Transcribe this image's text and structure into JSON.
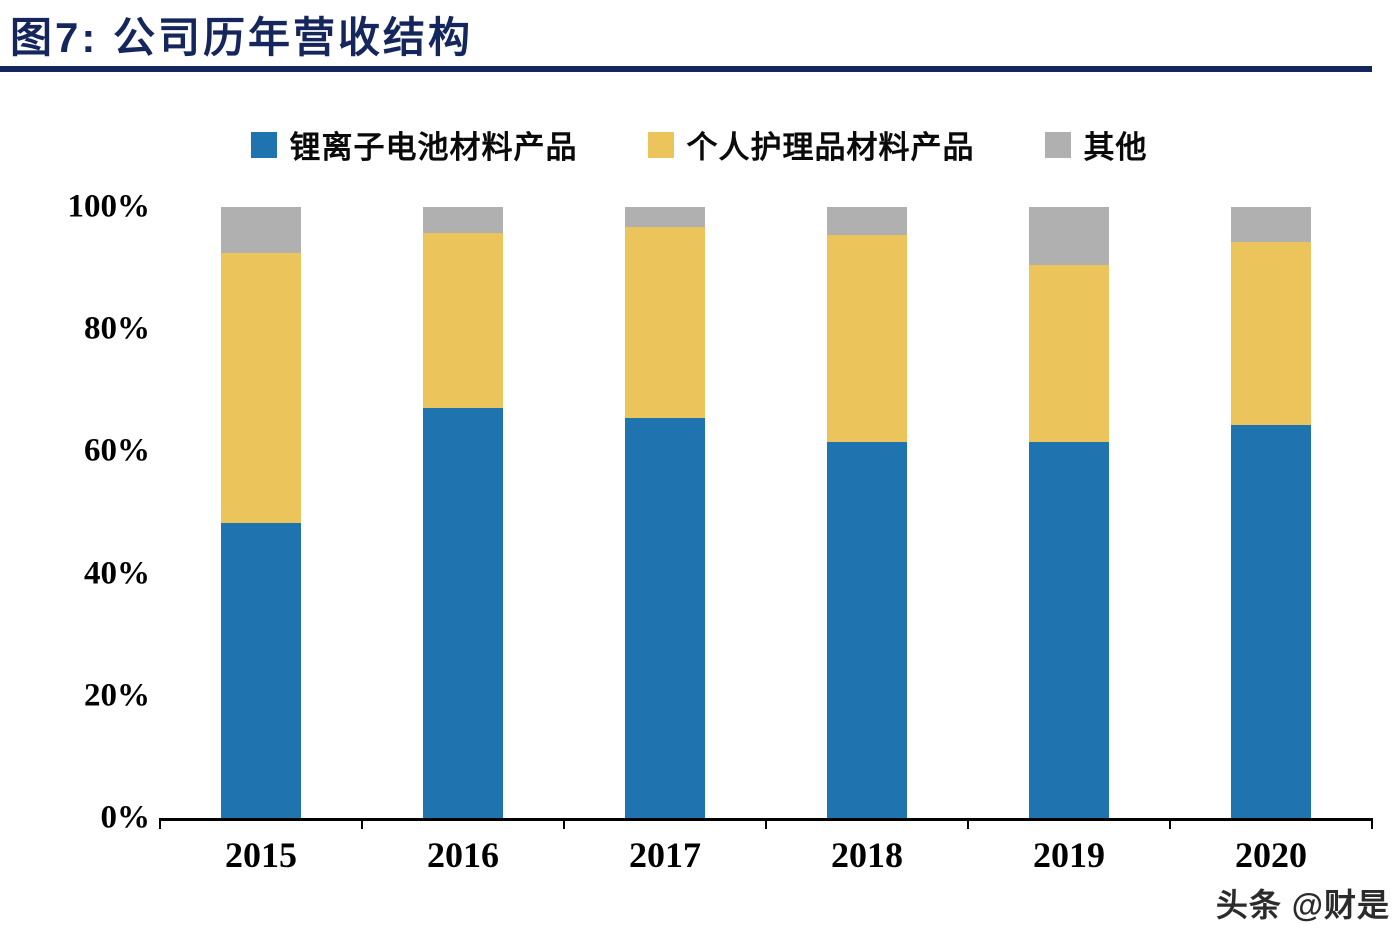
{
  "header": {
    "title": "图7:  公司历年营收结构"
  },
  "watermark": {
    "text": "头条 @财是"
  },
  "chart_data": {
    "type": "bar",
    "stacked": true,
    "title": "公司历年营收结构",
    "xlabel": "",
    "ylabel": "",
    "ylim": [
      0,
      100
    ],
    "grid": false,
    "legend_position": "top",
    "categories": [
      "2015",
      "2016",
      "2017",
      "2018",
      "2019",
      "2020"
    ],
    "series": [
      {
        "key": "lithium-battery-materials",
        "name": "锂离子电池材料产品",
        "color": "#1F74B0",
        "values": [
          48.3,
          67.1,
          65.4,
          61.5,
          61.6,
          64.4
        ]
      },
      {
        "key": "personal-care-materials",
        "name": "个人护理品材料产品",
        "color": "#EBC45C",
        "values": [
          44.2,
          28.7,
          31.3,
          33.9,
          28.9,
          29.8
        ]
      },
      {
        "key": "other",
        "name": "其他",
        "color": "#B0B0B0",
        "values": [
          7.5,
          4.2,
          3.3,
          4.6,
          9.5,
          5.8
        ]
      }
    ],
    "y_ticks": [
      "100%",
      "80%",
      "60%",
      "40%",
      "20%",
      "0%"
    ]
  }
}
